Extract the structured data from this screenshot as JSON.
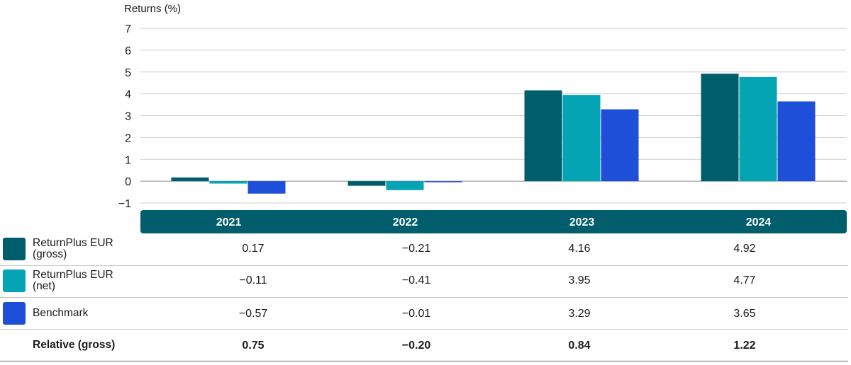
{
  "chart_data": {
    "type": "bar",
    "ylabel": "Returns (%)",
    "ylim": [
      -1,
      7
    ],
    "yticks": [
      7,
      6,
      5,
      4,
      3,
      2,
      1,
      0,
      -1
    ],
    "grid": true,
    "categories": [
      "2021",
      "2022",
      "2023",
      "2024"
    ],
    "series": [
      {
        "name": "ReturnPlus EUR (gross)",
        "color": "#005d6b",
        "values": [
          0.17,
          -0.21,
          4.16,
          4.92
        ]
      },
      {
        "name": "ReturnPlus EUR (net)",
        "color": "#05a4b4",
        "values": [
          -0.11,
          -0.41,
          3.95,
          4.77
        ]
      },
      {
        "name": "Benchmark",
        "color": "#1e4fd8",
        "values": [
          -0.57,
          -0.01,
          3.29,
          3.65
        ]
      }
    ],
    "relative": {
      "name": "Relative (gross)",
      "values": [
        "0.75",
        "−0.20",
        "0.84",
        "1.22"
      ]
    }
  },
  "table": {
    "header_color": "#005d6b",
    "rows": [
      {
        "label_line1": "ReturnPlus EUR",
        "label_line2": "(gross)",
        "cells": [
          "0.17",
          "−0.21",
          "4.16",
          "4.92"
        ]
      },
      {
        "label_line1": "ReturnPlus EUR",
        "label_line2": "(net)",
        "cells": [
          "−0.11",
          "−0.41",
          "3.95",
          "4.77"
        ]
      },
      {
        "label_line1": "Benchmark",
        "label_line2": "",
        "cells": [
          "−0.57",
          "−0.01",
          "3.29",
          "3.65"
        ]
      },
      {
        "label_line1": "Relative (gross)",
        "label_line2": "",
        "cells": [
          "0.75",
          "−0.20",
          "0.84",
          "1.22"
        ]
      }
    ]
  }
}
